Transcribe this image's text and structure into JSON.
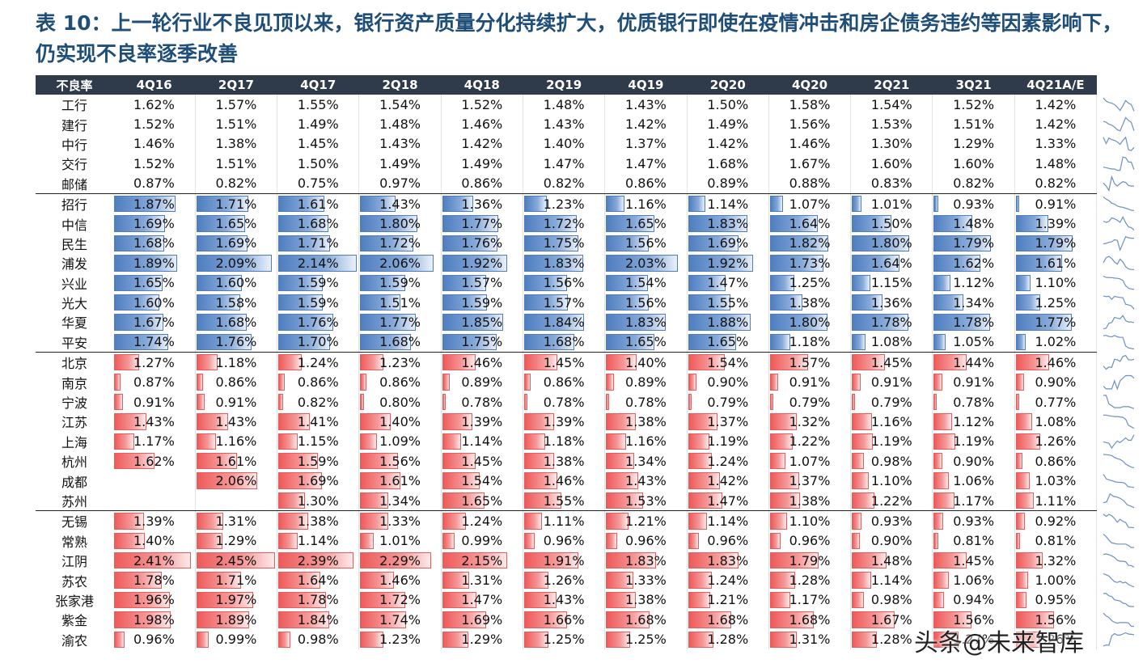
{
  "title": "表 10：上一轮行业不良见顶以来，银行资产质量分化持续扩大，优质银行即使在疫情冲击和房企债务违约等因素影响下，仍实现不良率逐季改善",
  "header": [
    "不良率",
    "4Q16",
    "2Q17",
    "4Q17",
    "2Q18",
    "4Q18",
    "2Q19",
    "4Q19",
    "2Q20",
    "4Q20",
    "2Q21",
    "3Q21",
    "4Q21A/E"
  ],
  "colors": {
    "header_bg": "#2f3a4a",
    "title": "#1f4e79",
    "blue_bar": "#4f7ec0",
    "red_bar": "#ee5a5a"
  },
  "rows": [
    {
      "name": "工行",
      "bar": "none",
      "vals": [
        "1.62%",
        "1.57%",
        "1.55%",
        "1.54%",
        "1.52%",
        "1.48%",
        "1.43%",
        "1.50%",
        "1.58%",
        "1.54%",
        "1.52%",
        "1.42%"
      ]
    },
    {
      "name": "建行",
      "bar": "none",
      "vals": [
        "1.52%",
        "1.51%",
        "1.49%",
        "1.48%",
        "1.46%",
        "1.43%",
        "1.42%",
        "1.49%",
        "1.56%",
        "1.53%",
        "1.51%",
        "1.42%"
      ]
    },
    {
      "name": "中行",
      "bar": "none",
      "vals": [
        "1.46%",
        "1.38%",
        "1.45%",
        "1.43%",
        "1.42%",
        "1.40%",
        "1.37%",
        "1.42%",
        "1.46%",
        "1.30%",
        "1.29%",
        "1.33%"
      ]
    },
    {
      "name": "交行",
      "bar": "none",
      "vals": [
        "1.52%",
        "1.51%",
        "1.50%",
        "1.49%",
        "1.49%",
        "1.47%",
        "1.47%",
        "1.68%",
        "1.67%",
        "1.60%",
        "1.60%",
        "1.48%"
      ]
    },
    {
      "name": "邮储",
      "bar": "none",
      "end": true,
      "vals": [
        "0.87%",
        "0.82%",
        "0.75%",
        "0.97%",
        "0.86%",
        "0.82%",
        "0.86%",
        "0.89%",
        "0.88%",
        "0.83%",
        "0.82%",
        "0.82%"
      ]
    },
    {
      "name": "招行",
      "bar": "blue",
      "vals": [
        "1.87%",
        "1.71%",
        "1.61%",
        "1.43%",
        "1.36%",
        "1.23%",
        "1.16%",
        "1.14%",
        "1.07%",
        "1.01%",
        "0.93%",
        "0.91%"
      ]
    },
    {
      "name": "中信",
      "bar": "blue",
      "vals": [
        "1.69%",
        "1.65%",
        "1.68%",
        "1.80%",
        "1.77%",
        "1.72%",
        "1.65%",
        "1.83%",
        "1.64%",
        "1.50%",
        "1.48%",
        "1.39%"
      ]
    },
    {
      "name": "民生",
      "bar": "blue",
      "vals": [
        "1.68%",
        "1.69%",
        "1.71%",
        "1.72%",
        "1.76%",
        "1.75%",
        "1.56%",
        "1.69%",
        "1.82%",
        "1.80%",
        "1.79%",
        "1.79%"
      ]
    },
    {
      "name": "浦发",
      "bar": "blue",
      "vals": [
        "1.89%",
        "2.09%",
        "2.14%",
        "2.06%",
        "1.92%",
        "1.83%",
        "2.03%",
        "1.92%",
        "1.73%",
        "1.64%",
        "1.62%",
        "1.61%"
      ]
    },
    {
      "name": "兴业",
      "bar": "blue",
      "vals": [
        "1.65%",
        "1.60%",
        "1.59%",
        "1.59%",
        "1.57%",
        "1.56%",
        "1.54%",
        "1.47%",
        "1.25%",
        "1.15%",
        "1.12%",
        "1.10%"
      ]
    },
    {
      "name": "光大",
      "bar": "blue",
      "vals": [
        "1.60%",
        "1.58%",
        "1.59%",
        "1.51%",
        "1.59%",
        "1.57%",
        "1.56%",
        "1.55%",
        "1.38%",
        "1.36%",
        "1.34%",
        "1.25%"
      ]
    },
    {
      "name": "华夏",
      "bar": "blue",
      "vals": [
        "1.67%",
        "1.68%",
        "1.76%",
        "1.77%",
        "1.85%",
        "1.84%",
        "1.83%",
        "1.88%",
        "1.80%",
        "1.78%",
        "1.78%",
        "1.77%"
      ]
    },
    {
      "name": "平安",
      "bar": "blue",
      "end": true,
      "vals": [
        "1.74%",
        "1.76%",
        "1.70%",
        "1.68%",
        "1.75%",
        "1.68%",
        "1.65%",
        "1.65%",
        "1.18%",
        "1.08%",
        "1.05%",
        "1.02%"
      ]
    },
    {
      "name": "北京",
      "bar": "red",
      "vals": [
        "1.27%",
        "1.18%",
        "1.24%",
        "1.23%",
        "1.46%",
        "1.45%",
        "1.40%",
        "1.54%",
        "1.57%",
        "1.45%",
        "1.44%",
        "1.46%"
      ]
    },
    {
      "name": "南京",
      "bar": "red",
      "vals": [
        "0.87%",
        "0.86%",
        "0.86%",
        "0.86%",
        "0.89%",
        "0.86%",
        "0.89%",
        "0.90%",
        "0.91%",
        "0.91%",
        "0.91%",
        "0.90%"
      ]
    },
    {
      "name": "宁波",
      "bar": "red",
      "vals": [
        "0.91%",
        "0.91%",
        "0.82%",
        "0.80%",
        "0.78%",
        "0.78%",
        "0.78%",
        "0.79%",
        "0.79%",
        "0.79%",
        "0.78%",
        "0.77%"
      ]
    },
    {
      "name": "江苏",
      "bar": "red",
      "vals": [
        "1.43%",
        "1.43%",
        "1.41%",
        "1.40%",
        "1.39%",
        "1.39%",
        "1.38%",
        "1.37%",
        "1.32%",
        "1.16%",
        "1.12%",
        "1.08%"
      ]
    },
    {
      "name": "上海",
      "bar": "red",
      "vals": [
        "1.17%",
        "1.16%",
        "1.15%",
        "1.09%",
        "1.14%",
        "1.18%",
        "1.16%",
        "1.19%",
        "1.22%",
        "1.19%",
        "1.19%",
        "1.26%"
      ]
    },
    {
      "name": "杭州",
      "bar": "red",
      "vals": [
        "1.62%",
        "1.61%",
        "1.59%",
        "1.56%",
        "1.45%",
        "1.38%",
        "1.34%",
        "1.24%",
        "1.07%",
        "0.98%",
        "0.90%",
        "0.86%"
      ]
    },
    {
      "name": "成都",
      "bar": "red",
      "vals": [
        "",
        "2.06%",
        "1.69%",
        "1.61%",
        "1.54%",
        "1.46%",
        "1.43%",
        "1.42%",
        "1.37%",
        "1.10%",
        "1.06%",
        "1.03%"
      ]
    },
    {
      "name": "苏州",
      "bar": "red",
      "end": true,
      "vals": [
        "",
        "",
        "1.30%",
        "1.34%",
        "1.65%",
        "1.55%",
        "1.53%",
        "1.47%",
        "1.38%",
        "1.22%",
        "1.17%",
        "1.11%"
      ]
    },
    {
      "name": "无锡",
      "bar": "red",
      "vals": [
        "1.39%",
        "1.31%",
        "1.38%",
        "1.33%",
        "1.24%",
        "1.11%",
        "1.21%",
        "1.14%",
        "1.10%",
        "0.93%",
        "0.93%",
        "0.92%"
      ]
    },
    {
      "name": "常熟",
      "bar": "red",
      "vals": [
        "1.40%",
        "1.29%",
        "1.14%",
        "1.01%",
        "0.99%",
        "0.96%",
        "0.96%",
        "0.96%",
        "0.96%",
        "0.90%",
        "0.81%",
        "0.81%"
      ]
    },
    {
      "name": "江阴",
      "bar": "red",
      "vals": [
        "2.41%",
        "2.45%",
        "2.39%",
        "2.29%",
        "2.15%",
        "1.91%",
        "1.83%",
        "1.83%",
        "1.79%",
        "1.48%",
        "1.45%",
        "1.32%"
      ]
    },
    {
      "name": "苏农",
      "bar": "red",
      "vals": [
        "1.78%",
        "1.71%",
        "1.64%",
        "1.46%",
        "1.31%",
        "1.26%",
        "1.33%",
        "1.24%",
        "1.28%",
        "1.14%",
        "1.06%",
        "1.00%"
      ]
    },
    {
      "name": "张家港",
      "bar": "red",
      "vals": [
        "1.96%",
        "1.97%",
        "1.78%",
        "1.72%",
        "1.47%",
        "1.43%",
        "1.38%",
        "1.21%",
        "1.17%",
        "0.98%",
        "0.94%",
        "0.95%"
      ]
    },
    {
      "name": "紫金",
      "bar": "red",
      "vals": [
        "1.98%",
        "1.89%",
        "1.84%",
        "1.74%",
        "1.69%",
        "1.66%",
        "1.68%",
        "1.68%",
        "1.68%",
        "1.67%",
        "1.56%",
        "1.56%"
      ]
    },
    {
      "name": "渝农",
      "bar": "red",
      "vals": [
        "0.96%",
        "0.99%",
        "0.98%",
        "1.23%",
        "1.29%",
        "1.25%",
        "1.25%",
        "1.28%",
        "1.31%",
        "1.28%",
        "1.27%",
        "1.26%"
      ]
    }
  ],
  "watermark": "头条@未来智库"
}
